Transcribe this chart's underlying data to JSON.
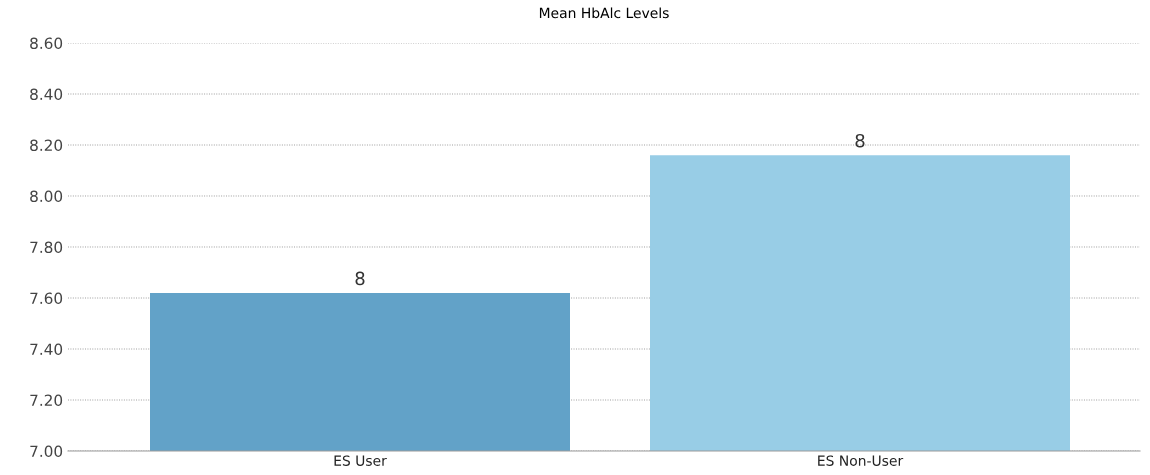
{
  "chart_data": {
    "type": "bar",
    "title": "Mean HbAlc Levels",
    "categories": [
      "ES User",
      "ES Non-User"
    ],
    "values": [
      7.62,
      8.16
    ],
    "colors": [
      "#62a2c8",
      "#98cde6"
    ],
    "value_labels": [
      "8",
      "8"
    ],
    "ylim": [
      7.0,
      8.6
    ],
    "yticks": [
      {
        "value": 7.0,
        "label": "7.00"
      },
      {
        "value": 7.2,
        "label": "7.20"
      },
      {
        "value": 7.4,
        "label": "7.40"
      },
      {
        "value": 7.6,
        "label": "7.60"
      },
      {
        "value": 7.8,
        "label": "7.80"
      },
      {
        "value": 8.0,
        "label": "8.00"
      },
      {
        "value": 8.2,
        "label": "8.20"
      },
      {
        "value": 8.4,
        "label": "8.40"
      },
      {
        "value": 8.6,
        "label": "8.60"
      }
    ],
    "grid": "y",
    "legend": false
  }
}
